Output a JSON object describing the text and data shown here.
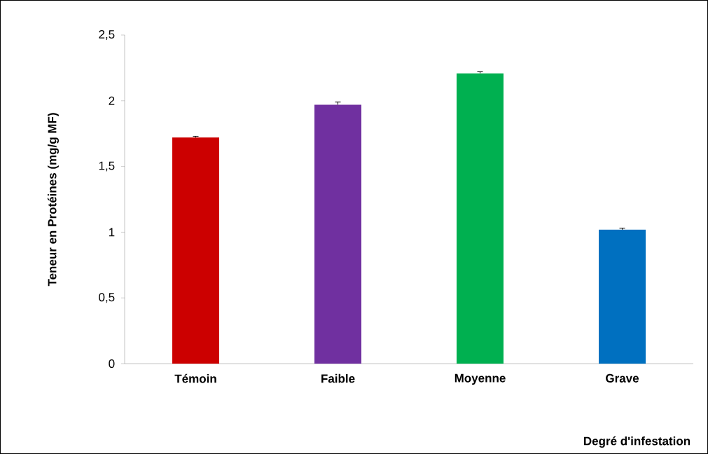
{
  "chart_data": {
    "type": "bar",
    "xlabel": "Degré d'infestation",
    "ylabel": "Teneur en Protéines (mg/g MF)",
    "categories": [
      "Témoin",
      "Faible",
      "Moyenne",
      "Grave"
    ],
    "values": [
      1.72,
      1.97,
      2.21,
      1.02
    ],
    "errors": [
      0.01,
      0.02,
      0.01,
      0.01
    ],
    "colors": [
      "#cc0000",
      "#7030a0",
      "#00b050",
      "#0070c0"
    ],
    "ylim": [
      0,
      2.5
    ],
    "yticks": [
      0,
      {
        "value": 0.5,
        "label": "0,5"
      },
      1,
      {
        "value": 1.5,
        "label": "1,5"
      },
      2,
      {
        "value": 2.5,
        "label": "2,5"
      }
    ],
    "grid": false
  }
}
